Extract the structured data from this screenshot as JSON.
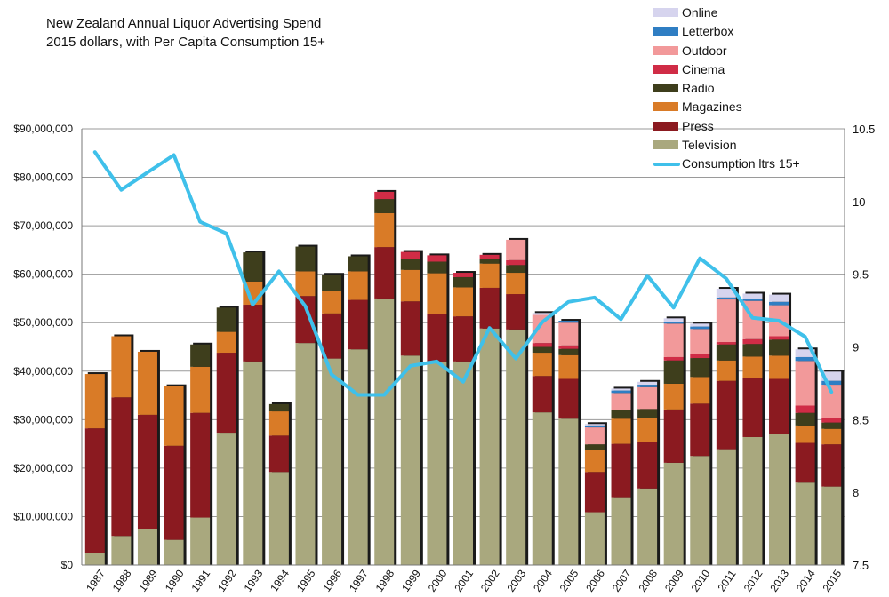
{
  "chart_data": {
    "type": "bar",
    "stacked": true,
    "title": "New Zealand Annual Liquor Advertising Spend",
    "subtitle": "2015 dollars, with Per Capita Consumption 15+",
    "categories": [
      "1987",
      "1988",
      "1989",
      "1990",
      "1991",
      "1992",
      "1993",
      "1994",
      "1995",
      "1996",
      "1997",
      "1998",
      "1999",
      "2000",
      "2001",
      "2002",
      "2003",
      "2004",
      "2005",
      "2006",
      "2007",
      "2008",
      "2009",
      "2010",
      "2011",
      "2012",
      "2013",
      "2014",
      "2015"
    ],
    "y_left": {
      "min": 0,
      "max": 90000000,
      "ticks": [
        0,
        10000000,
        20000000,
        30000000,
        40000000,
        50000000,
        60000000,
        70000000,
        80000000,
        90000000
      ],
      "tick_labels": [
        "$0",
        "$10,000,000",
        "$20,000,000",
        "$30,000,000",
        "$40,000,000",
        "$50,000,000",
        "$60,000,000",
        "$70,000,000",
        "$80,000,000",
        "$90,000,000"
      ]
    },
    "y_right": {
      "min": 7.5,
      "max": 10.5,
      "ticks": [
        7.5,
        8,
        8.5,
        9,
        9.5,
        10,
        10.5
      ],
      "tick_labels": [
        "7.5",
        "8",
        "8.5",
        "9",
        "9.5",
        "10",
        "10.5"
      ]
    },
    "grid": true,
    "legend_position": "top-right",
    "legend_order": [
      "Online",
      "Letterbox",
      "Outdoor",
      "Cinema",
      "Radio",
      "Magazines",
      "Press",
      "Television",
      "Consumption ltrs 15+"
    ],
    "series": [
      {
        "name": "Television",
        "color": "#a9a87e",
        "values": [
          2500000,
          6000000,
          7500000,
          5200000,
          9800000,
          27300000,
          42000000,
          19200000,
          45800000,
          42600000,
          44500000,
          55000000,
          43200000,
          42000000,
          42000000,
          48800000,
          48600000,
          31500000,
          30200000,
          10900000,
          14000000,
          15800000,
          21100000,
          22500000,
          23900000,
          26400000,
          27100000,
          17000000,
          16200000
        ]
      },
      {
        "name": "Press",
        "color": "#8b1a20",
        "values": [
          25700000,
          28600000,
          23500000,
          19400000,
          21600000,
          16500000,
          11700000,
          7500000,
          9700000,
          9300000,
          10200000,
          10600000,
          11200000,
          9800000,
          9300000,
          8400000,
          7300000,
          7500000,
          8200000,
          8300000,
          11000000,
          9500000,
          11000000,
          10800000,
          14100000,
          12100000,
          11300000,
          8200000,
          8700000
        ]
      },
      {
        "name": "Magazines",
        "color": "#d97b27",
        "values": [
          11200000,
          12600000,
          13000000,
          12300000,
          9500000,
          4300000,
          4800000,
          5000000,
          5100000,
          4700000,
          5900000,
          7000000,
          6500000,
          8400000,
          6000000,
          5000000,
          4400000,
          4800000,
          4900000,
          4600000,
          5200000,
          5000000,
          5300000,
          5500000,
          4200000,
          4500000,
          4800000,
          3600000,
          3200000
        ]
      },
      {
        "name": "Radio",
        "color": "#3e3e1c",
        "values": [
          0,
          0,
          0,
          0,
          4600000,
          5000000,
          6000000,
          1500000,
          5100000,
          3300000,
          3100000,
          2900000,
          2300000,
          2400000,
          2100000,
          1000000,
          1600000,
          1200000,
          1300000,
          1100000,
          1800000,
          1900000,
          4800000,
          3900000,
          3300000,
          2600000,
          3300000,
          2600000,
          1300000
        ]
      },
      {
        "name": "Cinema",
        "color": "#d02c46",
        "values": [
          0,
          0,
          0,
          0,
          0,
          0,
          0,
          0,
          0,
          0,
          0,
          1500000,
          1400000,
          1300000,
          900000,
          800000,
          1000000,
          800000,
          700000,
          0,
          0,
          0,
          700000,
          800000,
          500000,
          1000000,
          700000,
          1500000,
          1000000
        ]
      },
      {
        "name": "Outdoor",
        "color": "#f2999a",
        "values": [
          0,
          0,
          0,
          0,
          0,
          0,
          0,
          0,
          0,
          0,
          0,
          0,
          0,
          0,
          0,
          0,
          4200000,
          5800000,
          4700000,
          3500000,
          3500000,
          4500000,
          6900000,
          5200000,
          8800000,
          7900000,
          6400000,
          9200000,
          6800000
        ]
      },
      {
        "name": "Letterbox",
        "color": "#2f7ec3",
        "values": [
          0,
          0,
          0,
          0,
          0,
          0,
          0,
          0,
          0,
          0,
          0,
          0,
          0,
          0,
          0,
          0,
          0,
          0,
          400000,
          400000,
          500000,
          500000,
          400000,
          500000,
          400000,
          400000,
          700000,
          800000,
          800000
        ]
      },
      {
        "name": "Online",
        "color": "#d6d4ee",
        "values": [
          0,
          0,
          0,
          0,
          0,
          0,
          0,
          0,
          0,
          0,
          0,
          0,
          0,
          0,
          0,
          0,
          0,
          400000,
          0,
          300000,
          400000,
          600000,
          700000,
          600000,
          1800000,
          1100000,
          1500000,
          1600000,
          1900000
        ]
      }
    ],
    "line_series": {
      "name": "Consumption ltrs 15+",
      "color": "#3fc0ea",
      "axis": "right",
      "values": [
        10.34,
        10.08,
        10.2,
        10.32,
        9.86,
        9.78,
        9.29,
        9.52,
        9.28,
        8.81,
        8.67,
        8.67,
        8.87,
        8.9,
        8.76,
        9.13,
        8.92,
        9.17,
        9.31,
        9.34,
        9.19,
        9.49,
        9.27,
        9.61,
        9.47,
        9.2,
        9.18,
        9.07,
        8.69
      ]
    }
  }
}
